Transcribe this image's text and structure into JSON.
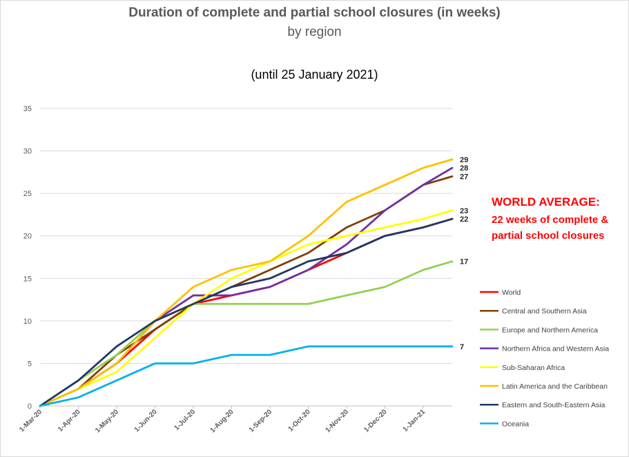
{
  "chart_data": {
    "type": "line",
    "title": "Duration of complete and partial school closures (in weeks)",
    "subtitle": "by region",
    "note": "(until 25 January 2021)",
    "ylim": [
      0,
      35
    ],
    "yticks": [
      0,
      5,
      10,
      15,
      20,
      25,
      30,
      35
    ],
    "x": [
      "1-Mar-20",
      "1-Apr-20",
      "1-May-20",
      "1-Jun-20",
      "1-Jul-20",
      "1-Aug-20",
      "1-Sep-20",
      "1-Oct-20",
      "1-Nov-20",
      "1-Dec-20",
      "1-Jan-21",
      "25-Jan-21"
    ],
    "xtick_labels": [
      "1-Mar-20",
      "1-Apr-20",
      "1-May-20",
      "1-Jun-20",
      "1-Jul-20",
      "1-Aug-20",
      "1-Sep-20",
      "1-Oct-20",
      "1-Nov-20",
      "1-Dec-20",
      "1-Jan-21"
    ],
    "series": [
      {
        "name": "World",
        "color": "#ff0000",
        "values": [
          0,
          2,
          5,
          9,
          12,
          13,
          14,
          16,
          18,
          20,
          21,
          22
        ]
      },
      {
        "name": "Central and Southern Asia",
        "color": "#7f3f00",
        "values": [
          0,
          2,
          6,
          9,
          12,
          14,
          16,
          18,
          21,
          23,
          26,
          27
        ],
        "end_label": "27"
      },
      {
        "name": "Europe and Northern America",
        "color": "#92d050",
        "values": [
          0,
          3,
          6,
          10,
          12,
          12,
          12,
          12,
          13,
          14,
          16,
          17
        ],
        "end_label": "17"
      },
      {
        "name": "Northern Africa and Western Asia",
        "color": "#7030a0",
        "values": [
          0,
          2,
          5,
          10,
          13,
          13,
          14,
          16,
          19,
          23,
          26,
          28
        ],
        "end_label": "28"
      },
      {
        "name": "Sub-Saharan Africa",
        "color": "#ffff00",
        "values": [
          0,
          2,
          4,
          8,
          12,
          15,
          17,
          19,
          20,
          21,
          22,
          23
        ],
        "end_label": "23"
      },
      {
        "name": "Latin America and the Caribbean",
        "color": "#ffc000",
        "values": [
          0,
          2,
          5,
          10,
          14,
          16,
          17,
          20,
          24,
          26,
          28,
          29
        ],
        "end_label": "29"
      },
      {
        "name": "Eastern and South-Eastern Asia",
        "color": "#1f3864",
        "values": [
          0,
          3,
          7,
          10,
          12,
          14,
          15,
          17,
          18,
          20,
          21,
          22
        ],
        "end_label": "22"
      },
      {
        "name": "Oceania",
        "color": "#00b0f0",
        "values": [
          0,
          1,
          3,
          5,
          5,
          6,
          6,
          7,
          7,
          7,
          7,
          7
        ],
        "end_label": "7"
      }
    ]
  },
  "annotation": {
    "heading": "WORLD AVERAGE:",
    "body": "22 weeks of complete & partial school closures"
  }
}
